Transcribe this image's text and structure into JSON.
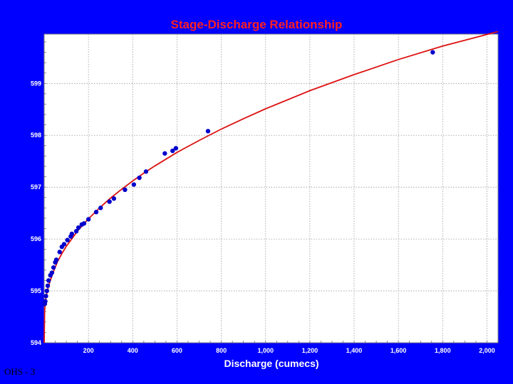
{
  "footer_label": "OHS - 3",
  "chart_data": {
    "type": "scatter",
    "title": "Stage-Discharge Relationship",
    "xlabel": "Discharge (cumecs)",
    "ylabel": "",
    "xlim": [
      0,
      2050
    ],
    "ylim": [
      594,
      599.95
    ],
    "x_ticks": [
      200,
      400,
      600,
      800,
      1000,
      1200,
      1400,
      1600,
      1800,
      2000
    ],
    "x_tick_labels": [
      "200",
      "400",
      "600",
      "800",
      "1,000",
      "1,200",
      "1,400",
      "1,600",
      "1,800",
      "2,000"
    ],
    "y_ticks": [
      594,
      595,
      596,
      597,
      598,
      599
    ],
    "y_tick_labels": [
      "594",
      "595",
      "596",
      "597",
      "598",
      "599"
    ],
    "grid": true,
    "legend": "none",
    "colors": {
      "background": "#0000ff",
      "plot_area": "#ffffff",
      "points": "#0000cc",
      "curve": "#dd1111",
      "title": "#ff2020"
    },
    "series": [
      {
        "type": "scatter",
        "points": [
          [
            3,
            594.75
          ],
          [
            5,
            594.8
          ],
          [
            8,
            594.9
          ],
          [
            12,
            595.0
          ],
          [
            16,
            595.1
          ],
          [
            20,
            595.2
          ],
          [
            28,
            595.3
          ],
          [
            35,
            595.35
          ],
          [
            42,
            595.45
          ],
          [
            50,
            595.55
          ],
          [
            55,
            595.6
          ],
          [
            70,
            595.75
          ],
          [
            80,
            595.85
          ],
          [
            90,
            595.9
          ],
          [
            105,
            595.98
          ],
          [
            120,
            596.05
          ],
          [
            125,
            596.1
          ],
          [
            145,
            596.15
          ],
          [
            155,
            596.22
          ],
          [
            170,
            596.28
          ],
          [
            180,
            596.3
          ],
          [
            200,
            596.38
          ],
          [
            235,
            596.52
          ],
          [
            255,
            596.6
          ],
          [
            295,
            596.72
          ],
          [
            315,
            596.78
          ],
          [
            365,
            596.95
          ],
          [
            405,
            597.05
          ],
          [
            430,
            597.18
          ],
          [
            460,
            597.3
          ],
          [
            545,
            597.65
          ],
          [
            580,
            597.7
          ],
          [
            595,
            597.75
          ],
          [
            740,
            598.08
          ],
          [
            1755,
            599.6
          ]
        ]
      },
      {
        "type": "line",
        "curve": [
          [
            0,
            594.0
          ],
          [
            2,
            594.6
          ],
          [
            5,
            594.78
          ],
          [
            10,
            594.92
          ],
          [
            20,
            595.1
          ],
          [
            40,
            595.35
          ],
          [
            60,
            595.56
          ],
          [
            80,
            595.72
          ],
          [
            100,
            595.86
          ],
          [
            150,
            596.15
          ],
          [
            200,
            596.39
          ],
          [
            250,
            596.6
          ],
          [
            300,
            596.79
          ],
          [
            350,
            596.96
          ],
          [
            400,
            597.12
          ],
          [
            450,
            597.27
          ],
          [
            500,
            597.41
          ],
          [
            600,
            597.67
          ],
          [
            700,
            597.9
          ],
          [
            800,
            598.12
          ],
          [
            900,
            598.32
          ],
          [
            1000,
            598.51
          ],
          [
            1200,
            598.86
          ],
          [
            1400,
            599.17
          ],
          [
            1600,
            599.46
          ],
          [
            1800,
            599.72
          ],
          [
            2050,
            600.0
          ]
        ]
      }
    ]
  }
}
